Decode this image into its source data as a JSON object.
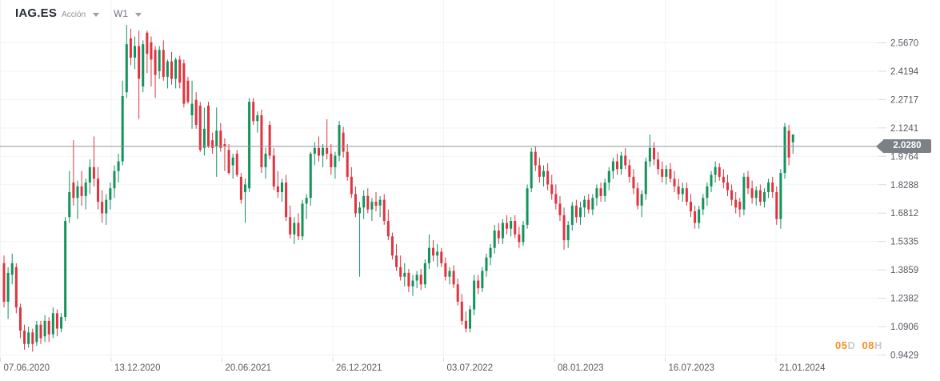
{
  "header": {
    "symbol": "IAG.ES",
    "instrument_type": "Acción",
    "timeframe": "W1"
  },
  "price_badge": {
    "value": "2.0280"
  },
  "countdown": {
    "days_value": "05",
    "days_unit": "D",
    "hours_value": "08",
    "hours_unit": "H"
  },
  "colors": {
    "up": "#13925c",
    "down": "#e03340",
    "grid": "#f1f3f5",
    "tick_dash": "#d9dcdf",
    "axis_text": "#565b62",
    "price_line": "#8f959c",
    "badge_bg": "#7b8187",
    "badge_text": "#ffffff",
    "countdown_accent": "#f59120",
    "countdown_unit": "#c7cacd",
    "title_text": "#2a2e39",
    "muted_text": "#8b9097"
  },
  "chart_data": {
    "type": "candlestick",
    "title": "IAG.ES weekly candlestick chart",
    "symbol": "IAG.ES",
    "timeframe": "W1",
    "legend_position": "none",
    "grid": true,
    "x_tick_labels": [
      "07.06.2020",
      "13.12.2020",
      "20.06.2021",
      "26.12.2021",
      "03.07.2022",
      "08.01.2023",
      "16.07.2023",
      "21.01.2024"
    ],
    "y_tick_labels": [
      "2.5670",
      "2.4194",
      "2.2717",
      "2.1241",
      "1.9764",
      "1.8288",
      "1.6812",
      "1.5335",
      "1.3859",
      "1.2382",
      "1.0906",
      "0.9429"
    ],
    "y_axis": {
      "top_value": 2.567,
      "step": 0.14765,
      "bottom_value": 0.9429
    },
    "current_price": 2.028,
    "candles_ohlc": [
      [
        1.42,
        1.46,
        1.19,
        1.22
      ],
      [
        1.22,
        1.4,
        1.13,
        1.37
      ],
      [
        1.36,
        1.47,
        1.31,
        1.42
      ],
      [
        1.4,
        1.42,
        1.16,
        1.19
      ],
      [
        1.19,
        1.21,
        1.03,
        1.07
      ],
      [
        1.07,
        1.1,
        0.97,
        1.0
      ],
      [
        1.0,
        1.09,
        0.98,
        1.06
      ],
      [
        1.06,
        1.08,
        0.96,
        1.0
      ],
      [
        1.01,
        1.12,
        0.99,
        1.1
      ],
      [
        1.1,
        1.12,
        1.0,
        1.03
      ],
      [
        1.04,
        1.15,
        1.01,
        1.12
      ],
      [
        1.12,
        1.14,
        1.01,
        1.05
      ],
      [
        1.05,
        1.19,
        1.03,
        1.16
      ],
      [
        1.16,
        1.18,
        1.04,
        1.08
      ],
      [
        1.08,
        1.16,
        1.06,
        1.14
      ],
      [
        1.14,
        1.66,
        1.12,
        1.64
      ],
      [
        1.66,
        1.9,
        1.63,
        1.79
      ],
      [
        1.84,
        2.06,
        1.72,
        1.76
      ],
      [
        1.76,
        1.85,
        1.65,
        1.82
      ],
      [
        1.82,
        1.9,
        1.72,
        1.77
      ],
      [
        1.77,
        1.86,
        1.7,
        1.84
      ],
      [
        1.84,
        1.96,
        1.78,
        1.92
      ],
      [
        1.92,
        2.08,
        1.82,
        1.86
      ],
      [
        1.86,
        1.92,
        1.7,
        1.74
      ],
      [
        1.74,
        1.8,
        1.63,
        1.68
      ],
      [
        1.68,
        1.78,
        1.62,
        1.75
      ],
      [
        1.75,
        1.84,
        1.7,
        1.81
      ],
      [
        1.81,
        1.93,
        1.76,
        1.9
      ],
      [
        1.9,
        1.99,
        1.84,
        1.95
      ],
      [
        1.95,
        2.37,
        1.93,
        2.29
      ],
      [
        2.31,
        2.66,
        2.28,
        2.56
      ],
      [
        2.59,
        2.64,
        2.45,
        2.49
      ],
      [
        2.49,
        2.6,
        2.43,
        2.55
      ],
      [
        2.55,
        2.63,
        2.17,
        2.38
      ],
      [
        2.34,
        2.58,
        2.31,
        2.56
      ],
      [
        2.62,
        2.63,
        2.41,
        2.51
      ],
      [
        2.57,
        2.6,
        2.34,
        2.48
      ],
      [
        2.53,
        2.55,
        2.28,
        2.4
      ],
      [
        2.42,
        2.55,
        2.38,
        2.53
      ],
      [
        2.53,
        2.58,
        2.37,
        2.39
      ],
      [
        2.39,
        2.48,
        2.33,
        2.47
      ],
      [
        2.47,
        2.52,
        2.35,
        2.38
      ],
      [
        2.38,
        2.49,
        2.33,
        2.48
      ],
      [
        2.48,
        2.5,
        2.33,
        2.36
      ],
      [
        2.46,
        2.48,
        2.23,
        2.25
      ],
      [
        2.37,
        2.39,
        2.25,
        2.26
      ],
      [
        2.19,
        2.37,
        2.12,
        2.25
      ],
      [
        2.27,
        2.31,
        2.12,
        2.14
      ],
      [
        2.24,
        2.26,
        2.0,
        2.01
      ],
      [
        2.02,
        2.23,
        1.98,
        2.12
      ],
      [
        2.24,
        2.26,
        2.02,
        2.03
      ],
      [
        2.06,
        2.1,
        1.99,
        2.02
      ],
      [
        2.03,
        2.23,
        1.87,
        2.11
      ],
      [
        2.11,
        2.15,
        2.0,
        2.02
      ],
      [
        2.04,
        2.07,
        1.9,
        2.03
      ],
      [
        2.01,
        2.04,
        1.88,
        1.89
      ],
      [
        1.93,
        1.99,
        1.86,
        1.97
      ],
      [
        1.99,
        2.01,
        1.87,
        1.88
      ],
      [
        1.87,
        1.89,
        1.73,
        1.75
      ],
      [
        1.79,
        1.86,
        1.63,
        1.83
      ],
      [
        1.81,
        2.28,
        1.79,
        2.26
      ],
      [
        2.26,
        2.28,
        2.14,
        2.16
      ],
      [
        2.16,
        2.21,
        2.1,
        2.19
      ],
      [
        2.19,
        2.22,
        1.89,
        1.92
      ],
      [
        1.92,
        2.02,
        1.86,
        1.99
      ],
      [
        2.14,
        2.16,
        1.96,
        1.98
      ],
      [
        1.98,
        2.02,
        1.8,
        1.82
      ],
      [
        1.82,
        1.9,
        1.76,
        1.79
      ],
      [
        1.79,
        1.86,
        1.74,
        1.84
      ],
      [
        1.84,
        1.88,
        1.64,
        1.66
      ],
      [
        1.66,
        1.72,
        1.55,
        1.57
      ],
      [
        1.57,
        1.66,
        1.52,
        1.63
      ],
      [
        1.63,
        1.68,
        1.54,
        1.56
      ],
      [
        1.56,
        1.75,
        1.54,
        1.73
      ],
      [
        1.73,
        1.78,
        1.65,
        1.76
      ],
      [
        1.76,
        2.0,
        1.72,
        1.99
      ],
      [
        1.99,
        2.05,
        1.93,
        2.02
      ],
      [
        2.02,
        2.08,
        1.95,
        1.98
      ],
      [
        1.98,
        2.04,
        1.92,
        2.02
      ],
      [
        2.02,
        2.17,
        1.96,
        1.99
      ],
      [
        1.99,
        2.04,
        1.88,
        1.92
      ],
      [
        1.92,
        2.0,
        1.86,
        1.98
      ],
      [
        1.98,
        2.16,
        1.95,
        2.14
      ],
      [
        2.1,
        2.13,
        1.97,
        2.0
      ],
      [
        2.0,
        2.04,
        1.85,
        1.87
      ],
      [
        1.87,
        1.92,
        1.76,
        1.78
      ],
      [
        1.78,
        1.82,
        1.66,
        1.68
      ],
      [
        1.68,
        1.74,
        1.35,
        1.71
      ],
      [
        1.71,
        1.8,
        1.65,
        1.77
      ],
      [
        1.77,
        1.81,
        1.68,
        1.7
      ],
      [
        1.7,
        1.76,
        1.64,
        1.74
      ],
      [
        1.74,
        1.79,
        1.69,
        1.72
      ],
      [
        1.72,
        1.77,
        1.66,
        1.75
      ],
      [
        1.75,
        1.78,
        1.62,
        1.64
      ],
      [
        1.64,
        1.7,
        1.54,
        1.56
      ],
      [
        1.56,
        1.58,
        1.44,
        1.46
      ],
      [
        1.46,
        1.52,
        1.38,
        1.4
      ],
      [
        1.4,
        1.46,
        1.33,
        1.35
      ],
      [
        1.35,
        1.42,
        1.3,
        1.37
      ],
      [
        1.37,
        1.39,
        1.27,
        1.3
      ],
      [
        1.3,
        1.36,
        1.25,
        1.33
      ],
      [
        1.33,
        1.38,
        1.29,
        1.36
      ],
      [
        1.36,
        1.39,
        1.28,
        1.31
      ],
      [
        1.31,
        1.44,
        1.29,
        1.42
      ],
      [
        1.42,
        1.57,
        1.39,
        1.5
      ],
      [
        1.5,
        1.54,
        1.43,
        1.46
      ],
      [
        1.46,
        1.52,
        1.4,
        1.48
      ],
      [
        1.48,
        1.5,
        1.4,
        1.42
      ],
      [
        1.42,
        1.45,
        1.33,
        1.35
      ],
      [
        1.35,
        1.4,
        1.31,
        1.38
      ],
      [
        1.38,
        1.41,
        1.29,
        1.31
      ],
      [
        1.31,
        1.34,
        1.2,
        1.22
      ],
      [
        1.22,
        1.26,
        1.1,
        1.12
      ],
      [
        1.12,
        1.17,
        1.06,
        1.08
      ],
      [
        1.08,
        1.2,
        1.06,
        1.18
      ],
      [
        1.18,
        1.36,
        1.15,
        1.33
      ],
      [
        1.33,
        1.36,
        1.26,
        1.29
      ],
      [
        1.29,
        1.4,
        1.27,
        1.38
      ],
      [
        1.38,
        1.47,
        1.35,
        1.45
      ],
      [
        1.45,
        1.52,
        1.41,
        1.5
      ],
      [
        1.5,
        1.62,
        1.47,
        1.59
      ],
      [
        1.59,
        1.63,
        1.52,
        1.55
      ],
      [
        1.55,
        1.65,
        1.52,
        1.63
      ],
      [
        1.63,
        1.67,
        1.57,
        1.6
      ],
      [
        1.6,
        1.66,
        1.56,
        1.64
      ],
      [
        1.64,
        1.67,
        1.55,
        1.57
      ],
      [
        1.57,
        1.61,
        1.5,
        1.53
      ],
      [
        1.53,
        1.64,
        1.51,
        1.62
      ],
      [
        1.62,
        1.83,
        1.6,
        1.81
      ],
      [
        1.81,
        2.02,
        1.79,
        2.0
      ],
      [
        2.0,
        2.03,
        1.9,
        1.93
      ],
      [
        1.93,
        1.97,
        1.84,
        1.87
      ],
      [
        1.87,
        1.93,
        1.82,
        1.9
      ],
      [
        1.9,
        1.94,
        1.8,
        1.83
      ],
      [
        1.83,
        1.88,
        1.75,
        1.78
      ],
      [
        1.78,
        1.83,
        1.7,
        1.73
      ],
      [
        1.73,
        1.77,
        1.64,
        1.67
      ],
      [
        1.67,
        1.71,
        1.49,
        1.54
      ],
      [
        1.54,
        1.64,
        1.5,
        1.62
      ],
      [
        1.62,
        1.74,
        1.59,
        1.72
      ],
      [
        1.72,
        1.75,
        1.63,
        1.66
      ],
      [
        1.66,
        1.74,
        1.62,
        1.71
      ],
      [
        1.71,
        1.77,
        1.66,
        1.75
      ],
      [
        1.75,
        1.78,
        1.68,
        1.7
      ],
      [
        1.7,
        1.78,
        1.67,
        1.76
      ],
      [
        1.76,
        1.83,
        1.72,
        1.81
      ],
      [
        1.81,
        1.84,
        1.74,
        1.77
      ],
      [
        1.77,
        1.86,
        1.74,
        1.84
      ],
      [
        1.84,
        1.92,
        1.8,
        1.9
      ],
      [
        1.9,
        1.97,
        1.86,
        1.95
      ],
      [
        1.95,
        1.99,
        1.88,
        1.91
      ],
      [
        1.91,
        2.0,
        1.88,
        1.98
      ],
      [
        1.98,
        2.02,
        1.91,
        1.93
      ],
      [
        1.93,
        1.96,
        1.84,
        1.87
      ],
      [
        1.87,
        1.91,
        1.78,
        1.81
      ],
      [
        1.81,
        1.84,
        1.7,
        1.72
      ],
      [
        1.72,
        1.8,
        1.66,
        1.78
      ],
      [
        1.78,
        1.97,
        1.75,
        1.95
      ],
      [
        1.95,
        2.09,
        1.92,
        2.02
      ],
      [
        2.02,
        2.05,
        1.93,
        1.96
      ],
      [
        1.96,
        2.0,
        1.88,
        1.91
      ],
      [
        1.91,
        1.95,
        1.84,
        1.87
      ],
      [
        1.87,
        1.93,
        1.83,
        1.91
      ],
      [
        1.91,
        1.94,
        1.84,
        1.86
      ],
      [
        1.86,
        1.9,
        1.79,
        1.82
      ],
      [
        1.82,
        1.86,
        1.75,
        1.78
      ],
      [
        1.78,
        1.84,
        1.74,
        1.81
      ],
      [
        1.81,
        1.84,
        1.72,
        1.74
      ],
      [
        1.74,
        1.78,
        1.66,
        1.69
      ],
      [
        1.69,
        1.72,
        1.6,
        1.63
      ],
      [
        1.63,
        1.72,
        1.6,
        1.7
      ],
      [
        1.7,
        1.78,
        1.67,
        1.76
      ],
      [
        1.76,
        1.84,
        1.72,
        1.82
      ],
      [
        1.82,
        1.9,
        1.79,
        1.88
      ],
      [
        1.88,
        1.95,
        1.84,
        1.92
      ],
      [
        1.92,
        1.94,
        1.85,
        1.87
      ],
      [
        1.87,
        1.91,
        1.81,
        1.84
      ],
      [
        1.84,
        1.88,
        1.77,
        1.8
      ],
      [
        1.8,
        1.83,
        1.72,
        1.75
      ],
      [
        1.75,
        1.79,
        1.68,
        1.71
      ],
      [
        1.74,
        1.76,
        1.66,
        1.7
      ],
      [
        1.7,
        1.89,
        1.67,
        1.87
      ],
      [
        1.87,
        1.9,
        1.78,
        1.81
      ],
      [
        1.81,
        1.85,
        1.73,
        1.76
      ],
      [
        1.76,
        1.82,
        1.72,
        1.8
      ],
      [
        1.8,
        1.83,
        1.72,
        1.74
      ],
      [
        1.74,
        1.81,
        1.71,
        1.79
      ],
      [
        1.79,
        1.86,
        1.76,
        1.84
      ],
      [
        1.84,
        1.87,
        1.76,
        1.79
      ],
      [
        1.79,
        1.82,
        1.62,
        1.65
      ],
      [
        1.65,
        1.91,
        1.6,
        1.89
      ],
      [
        1.89,
        2.15,
        1.86,
        2.13
      ],
      [
        2.11,
        2.14,
        1.93,
        1.97
      ],
      [
        2.05,
        2.09,
        1.99,
        2.09
      ]
    ]
  }
}
